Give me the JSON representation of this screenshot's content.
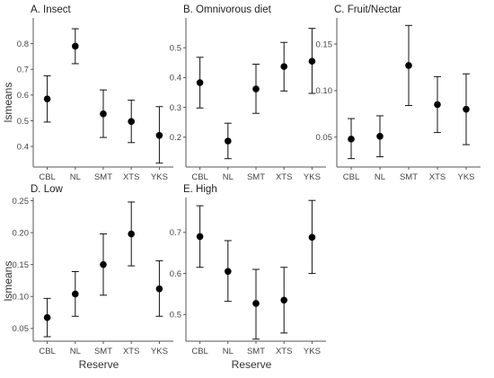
{
  "figure": {
    "x_axis_label": "Reserve",
    "y_axis_label": "lsmeans"
  },
  "chart_data": [
    {
      "type": "scatter",
      "title": "A. Insect",
      "categories": [
        "CBL",
        "NL",
        "SMT",
        "XTS",
        "YKS"
      ],
      "values": [
        0.585,
        0.79,
        0.527,
        0.497,
        0.443
      ],
      "lower": [
        0.495,
        0.722,
        0.435,
        0.415,
        0.335
      ],
      "upper": [
        0.675,
        0.858,
        0.62,
        0.58,
        0.555
      ],
      "ylim": [
        0.32,
        0.9
      ],
      "yticks": [
        0.4,
        0.5,
        0.6,
        0.7,
        0.8
      ],
      "ytick_labels": [
        "0.4",
        "0.5",
        "0.6",
        "0.7",
        "0.8"
      ],
      "xlabel": "",
      "ylabel": "lsmeans"
    },
    {
      "type": "scatter",
      "title": "B. Omnivorous diet",
      "categories": [
        "CBL",
        "NL",
        "SMT",
        "XTS",
        "YKS"
      ],
      "values": [
        0.383,
        0.187,
        0.362,
        0.437,
        0.455
      ],
      "lower": [
        0.298,
        0.128,
        0.28,
        0.355,
        0.347
      ],
      "upper": [
        0.468,
        0.247,
        0.445,
        0.518,
        0.565
      ],
      "ylim": [
        0.1,
        0.6
      ],
      "yticks": [
        0.2,
        0.3,
        0.4,
        0.5
      ],
      "ytick_labels": [
        "0.2",
        "0.3",
        "0.4",
        "0.5"
      ],
      "xlabel": "",
      "ylabel": ""
    },
    {
      "type": "scatter",
      "title": "C. Fruit/Nectar",
      "categories": [
        "CBL",
        "NL",
        "SMT",
        "XTS",
        "YKS"
      ],
      "values": [
        0.048,
        0.051,
        0.127,
        0.085,
        0.08
      ],
      "lower": [
        0.027,
        0.029,
        0.084,
        0.055,
        0.042
      ],
      "upper": [
        0.07,
        0.073,
        0.17,
        0.115,
        0.118
      ],
      "ylim": [
        0.018,
        0.178
      ],
      "yticks": [
        0.05,
        0.1,
        0.15
      ],
      "ytick_labels": [
        "0.05",
        "0.10",
        "0.15"
      ],
      "xlabel": "",
      "ylabel": ""
    },
    {
      "type": "scatter",
      "title": "D. Low",
      "categories": [
        "CBL",
        "NL",
        "SMT",
        "XTS",
        "YKS"
      ],
      "values": [
        0.067,
        0.104,
        0.15,
        0.198,
        0.112
      ],
      "lower": [
        0.037,
        0.069,
        0.102,
        0.148,
        0.069
      ],
      "upper": [
        0.097,
        0.139,
        0.198,
        0.248,
        0.156
      ],
      "ylim": [
        0.03,
        0.255
      ],
      "yticks": [
        0.05,
        0.1,
        0.15,
        0.2,
        0.25
      ],
      "ytick_labels": [
        "0.05",
        "0.10",
        "0.15",
        "0.20",
        "0.25"
      ],
      "xlabel": "Reserve",
      "ylabel": "lsmeans"
    },
    {
      "type": "scatter",
      "title": "E. High",
      "categories": [
        "CBL",
        "NL",
        "SMT",
        "XTS",
        "YKS"
      ],
      "values": [
        0.69,
        0.605,
        0.527,
        0.535,
        0.688
      ],
      "lower": [
        0.615,
        0.532,
        0.44,
        0.455,
        0.6
      ],
      "upper": [
        0.765,
        0.68,
        0.61,
        0.615,
        0.778
      ],
      "ylim": [
        0.435,
        0.785
      ],
      "yticks": [
        0.5,
        0.6,
        0.7
      ],
      "ytick_labels": [
        "0.5",
        "0.6",
        "0.7"
      ],
      "xlabel": "Reserve",
      "ylabel": ""
    }
  ]
}
